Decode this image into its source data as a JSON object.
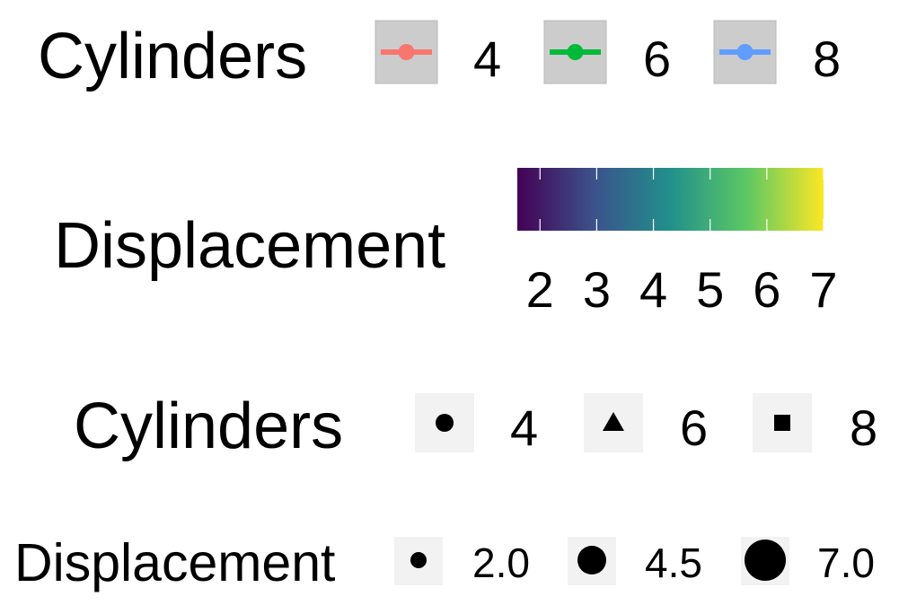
{
  "chart_data": {
    "type": "legend",
    "legends": [
      {
        "id": "color-cylinders",
        "title": "Cylinders",
        "kind": "line-point",
        "entries": [
          {
            "label": "4",
            "color": "#F8766D"
          },
          {
            "label": "6",
            "color": "#00BA38"
          },
          {
            "label": "8",
            "color": "#619CFF"
          }
        ]
      },
      {
        "id": "fill-displacement",
        "title": "Displacement",
        "kind": "colorbar",
        "palette": "viridis",
        "stops": [
          "#440154",
          "#3B528B",
          "#21908C",
          "#5DC863",
          "#FDE725"
        ],
        "range": [
          1.6,
          7.0
        ],
        "ticks": [
          {
            "label": "2",
            "value": 2
          },
          {
            "label": "3",
            "value": 3
          },
          {
            "label": "4",
            "value": 4
          },
          {
            "label": "5",
            "value": 5
          },
          {
            "label": "6",
            "value": 6
          },
          {
            "label": "7",
            "value": 7
          }
        ]
      },
      {
        "id": "shape-cylinders",
        "title": "Cylinders",
        "kind": "shape",
        "entries": [
          {
            "label": "4",
            "shape": "circle"
          },
          {
            "label": "6",
            "shape": "triangle"
          },
          {
            "label": "8",
            "shape": "square"
          }
        ]
      },
      {
        "id": "size-displacement",
        "title": "Displacement",
        "kind": "size",
        "entries": [
          {
            "label": "2.0",
            "value": 2.0
          },
          {
            "label": "4.5",
            "value": 4.5
          },
          {
            "label": "7.0",
            "value": 7.0
          }
        ]
      }
    ]
  }
}
